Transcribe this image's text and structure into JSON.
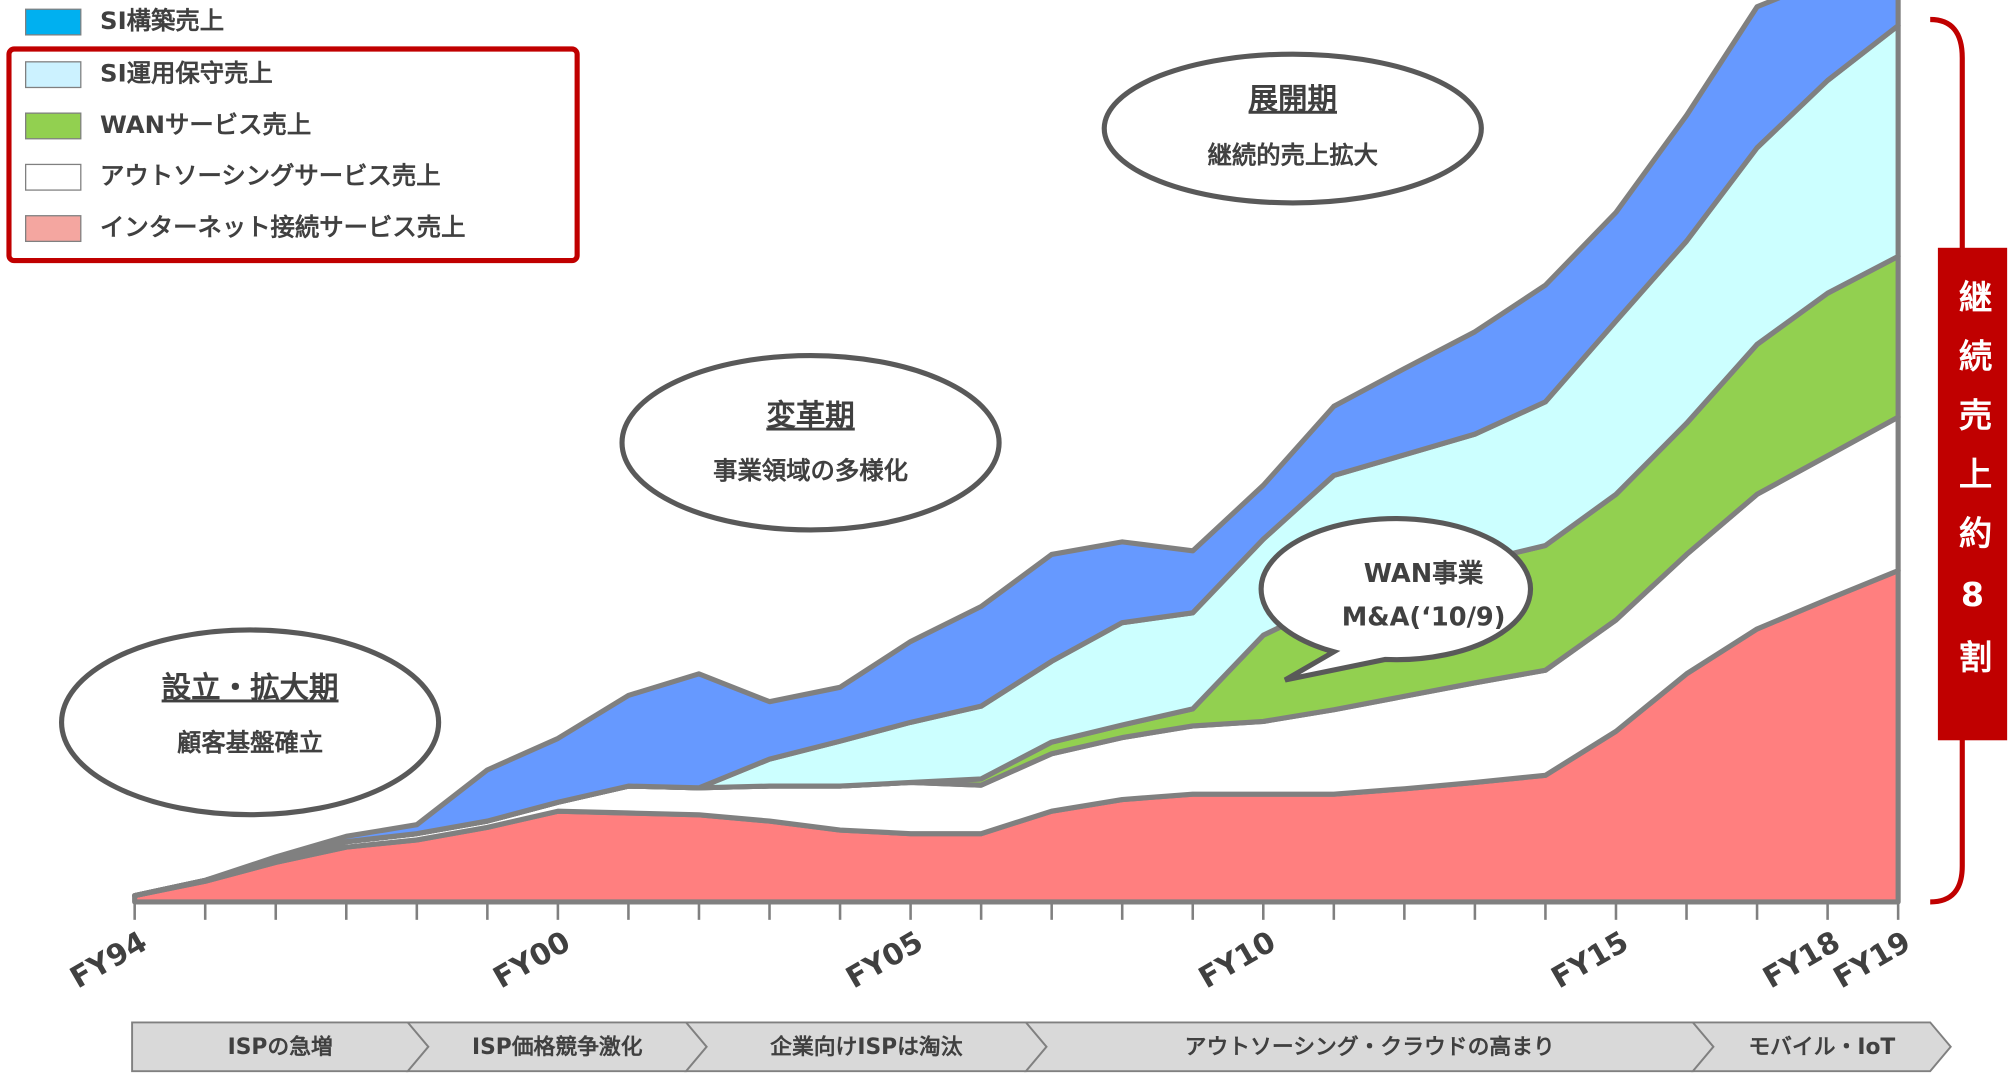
{
  "chart_data": {
    "type": "stacked_area",
    "categories": [
      "FY94",
      null,
      null,
      null,
      null,
      null,
      "FY00",
      null,
      null,
      null,
      null,
      "FY05",
      null,
      null,
      null,
      null,
      "FY10",
      null,
      null,
      null,
      null,
      "FY15",
      null,
      null,
      "FY18",
      "FY19"
    ],
    "ylim": [
      0,
      100
    ],
    "series": [
      {
        "name": "SI構築売上",
        "color": "#6699ff",
        "legend_color": "#00b0f0",
        "values": [
          0,
          0,
          0.3,
          0.6,
          1.0,
          5.7,
          7.1,
          10.1,
          12.7,
          6.4,
          6.0,
          9.0,
          11.1,
          11.9,
          9.0,
          6.9,
          6.0,
          7.7,
          9.6,
          11.4,
          13.0,
          12.1,
          14.0,
          15.7,
          11.4,
          6.4
        ]
      },
      {
        "name": "SI運用保守売上",
        "color": "#ccffff",
        "legend_color": "#ccf2ff",
        "values": [
          0,
          0,
          0,
          0,
          0,
          0,
          0,
          0,
          0,
          3.0,
          5.0,
          6.7,
          8.1,
          9.0,
          11.4,
          10.7,
          10.7,
          14.0,
          14.3,
          14.3,
          16.0,
          19.3,
          20.3,
          21.9,
          23.7,
          25.7
        ]
      },
      {
        "name": "WANサービス売上",
        "color": "#92d050",
        "legend_color": "#92d050",
        "values": [
          0,
          0,
          0,
          0,
          0,
          0,
          0,
          0,
          0,
          0,
          0,
          0,
          0.7,
          1.3,
          1.4,
          1.9,
          9.6,
          12.1,
          12.6,
          13.4,
          13.9,
          14.0,
          14.6,
          16.7,
          18.1,
          17.9
        ]
      },
      {
        "name": "アウトソーシングサービス売上",
        "color": "#ffffff",
        "legend_color": "#ffffff",
        "values": [
          0,
          0.1,
          0.3,
          0.6,
          0.7,
          0.7,
          1.0,
          3.0,
          3.0,
          3.9,
          4.9,
          5.7,
          5.4,
          6.4,
          6.9,
          7.6,
          8.1,
          9.4,
          10.3,
          11.1,
          11.7,
          12.4,
          13.3,
          15.0,
          16.0,
          17.1
        ]
      },
      {
        "name": "インターネット接続サービス売上",
        "color": "#ff7f7f",
        "legend_color": "#f4a6a0",
        "values": [
          0.7,
          2.3,
          4.4,
          6.1,
          6.9,
          8.3,
          10.1,
          9.9,
          9.7,
          9.0,
          8.0,
          7.6,
          7.6,
          10.1,
          11.4,
          12.0,
          12.0,
          12.0,
          12.6,
          13.3,
          14.1,
          19.0,
          25.4,
          30.4,
          33.7,
          36.9
        ]
      }
    ],
    "annotations": [
      {
        "title": "設立・拡大期",
        "subtitle": "顧客基盤確立"
      },
      {
        "title": "変革期",
        "subtitle": "事業領域の多様化"
      },
      {
        "title": "展開期",
        "subtitle": "継続的売上拡大"
      }
    ],
    "callout": [
      "WAN事業",
      "M&A(‘10/9)"
    ],
    "bracket_label": "継続売上約8割",
    "phases": [
      "ISPの急増",
      "ISP価格競争激化",
      "企業向けISPは淘汰",
      "アウトソーシング・クラウドの高まり",
      "モバイル・IoT"
    ]
  }
}
